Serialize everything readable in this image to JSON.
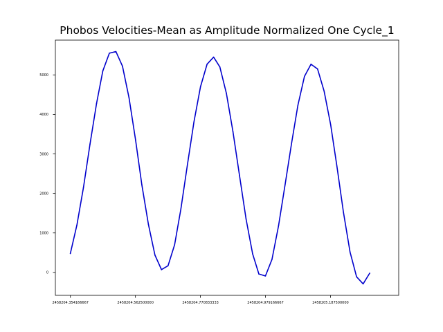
{
  "chart_data": {
    "type": "line",
    "title": "Phobos Velocities-Mean as Amplitude Normalized One Cycle_1",
    "xlabel": "",
    "ylabel": "",
    "xlim": [
      2458204.306,
      2458205.406
    ],
    "ylim": [
      -580,
      5880
    ],
    "grid": false,
    "x_ticks": [
      2458204.354166667,
      2458204.5625,
      2458204.770833333,
      2458204.979166667,
      2458205.1875
    ],
    "x_tick_labels": [
      "2458204.354166667",
      "2458204.562500000",
      "2458204.770833333",
      "2458204.979166667",
      "2458205.187500000"
    ],
    "y_ticks": [
      0,
      1000,
      2000,
      3000,
      4000,
      5000
    ],
    "y_tick_labels": [
      "0",
      "1000",
      "2000",
      "3000",
      "4000",
      "5000"
    ],
    "series": [
      {
        "color": "#0000cc",
        "x": [
          2458204.354,
          2458204.375,
          2458204.396,
          2458204.417,
          2458204.438,
          2458204.458,
          2458204.479,
          2458204.5,
          2458204.521,
          2458204.542,
          2458204.563,
          2458204.583,
          2458204.604,
          2458204.625,
          2458204.646,
          2458204.667,
          2458204.688,
          2458204.708,
          2458204.729,
          2458204.75,
          2458204.771,
          2458204.792,
          2458204.813,
          2458204.833,
          2458204.854,
          2458204.875,
          2458204.896,
          2458204.917,
          2458204.938,
          2458204.958,
          2458204.979,
          2458205.0,
          2458205.021,
          2458205.042,
          2458205.063,
          2458205.083,
          2458205.104,
          2458205.125,
          2458205.146,
          2458205.167,
          2458205.188,
          2458205.208,
          2458205.229,
          2458205.25,
          2458205.271,
          2458205.292,
          2458205.313
        ],
        "y": [
          480,
          1200,
          2150,
          3250,
          4280,
          5100,
          5550,
          5590,
          5220,
          4420,
          3350,
          2220,
          1220,
          440,
          70,
          170,
          700,
          1600,
          2720,
          3810,
          4700,
          5270,
          5450,
          5200,
          4530,
          3560,
          2450,
          1350,
          470,
          -40,
          -90,
          330,
          1180,
          2220,
          3280,
          4230,
          4960,
          5270,
          5150,
          4590,
          3740,
          2690,
          1520,
          520,
          -110,
          -290,
          -20
        ]
      }
    ]
  }
}
